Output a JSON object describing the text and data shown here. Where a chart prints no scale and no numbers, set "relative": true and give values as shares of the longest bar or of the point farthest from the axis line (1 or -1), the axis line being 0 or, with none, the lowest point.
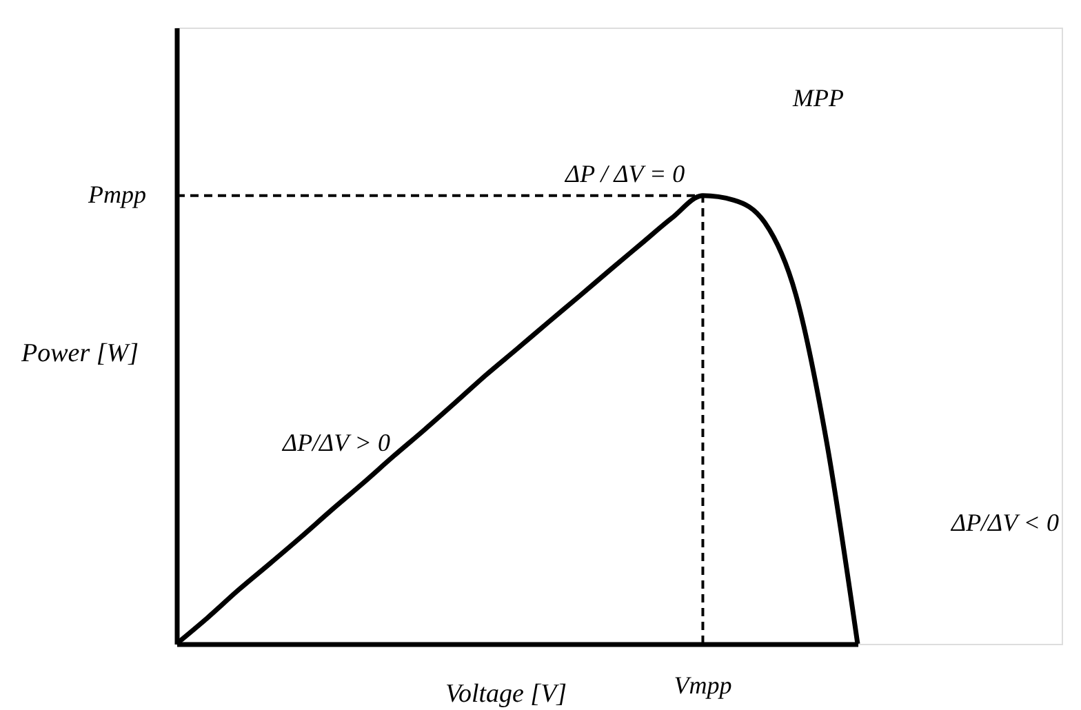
{
  "chart_data": {
    "type": "line",
    "relative": true,
    "xlabel": "Voltage [V]",
    "ylabel": "Power [W]",
    "categories": [
      null,
      null,
      null,
      null,
      null,
      null,
      null,
      null,
      null,
      null,
      null,
      null,
      null,
      null,
      null,
      null,
      null,
      null,
      null,
      null,
      null,
      null,
      null
    ],
    "series": [
      {
        "color": "#000000",
        "values": [
          0,
          0.058,
          0.12,
          0.178,
          0.237,
          0.298,
          0.357,
          0.418,
          0.477,
          0.538,
          0.6,
          0.658,
          0.717,
          0.775,
          0.834,
          0.892,
          0.95,
          1,
          0.99,
          0.94,
          0.78,
          0.45,
          0
        ]
      }
    ],
    "ref_lines": [
      {
        "axis": "y",
        "label": "Pmpp",
        "line_style": "dashed",
        "color": "#000000"
      },
      {
        "axis": "x",
        "label": "Vmpp",
        "line_style": "dashed",
        "color": "#000000"
      }
    ],
    "annotations": [
      "MPP",
      "ΔP / ΔV  = 0",
      "ΔP/ΔV   > 0",
      "ΔP/ΔV  < 0"
    ],
    "line_style": "solid",
    "marker": "none",
    "grid": false
  }
}
